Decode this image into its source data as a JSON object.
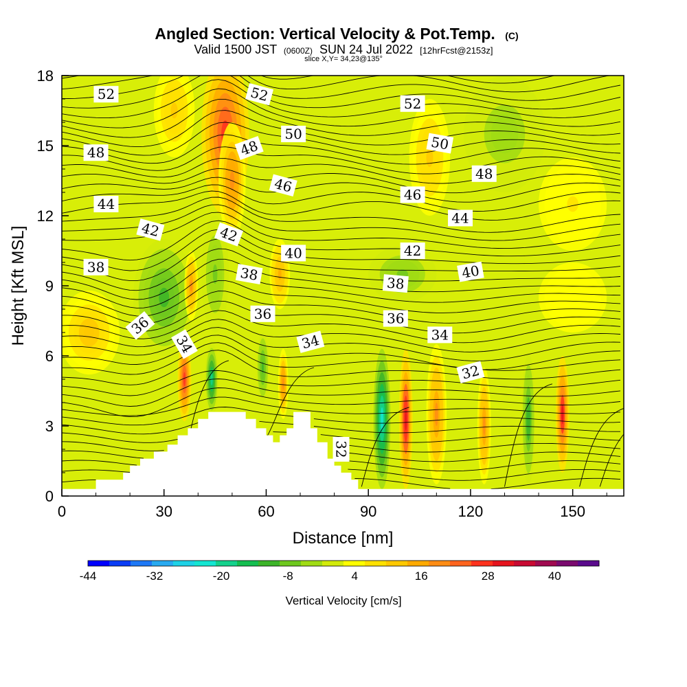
{
  "title": {
    "main": "Angled Section: Vertical Velocity & Pot.Temp.",
    "main_unit": "(C)",
    "valid_prefix": "Valid 1500 JST",
    "valid_utc": "(0600Z)",
    "valid_date": "SUN 24 Jul 2022",
    "forecast": "[12hrFcst@2153z]",
    "slice": "slice X,Y= 34,23@135°"
  },
  "chart_data": {
    "type": "heatmap",
    "xlabel": "Distance [nm]",
    "ylabel": "Height [Kft MSL]",
    "xlim": [
      0,
      165
    ],
    "ylim": [
      0,
      18
    ],
    "x_ticks": [
      "0",
      "30",
      "60",
      "90",
      "120",
      "150"
    ],
    "x_tick_values": [
      0,
      30,
      60,
      90,
      120,
      150
    ],
    "y_ticks": [
      "0",
      "3",
      "6",
      "9",
      "12",
      "15",
      "18"
    ],
    "y_tick_values": [
      0,
      3,
      6,
      9,
      12,
      15,
      18
    ],
    "fill_variable": "Vertical Velocity [cm/s]",
    "colorbar": {
      "label": "Vertical Velocity [cm/s]",
      "tick_labels": [
        "-44",
        "-32",
        "-20",
        "-8",
        "4",
        "16",
        "28",
        "40"
      ],
      "tick_values": [
        -44,
        -32,
        -20,
        -8,
        4,
        16,
        28,
        40
      ],
      "range": [
        -44,
        48
      ],
      "colors": [
        "#0000ff",
        "#0a3cf5",
        "#1e78f5",
        "#28aaf0",
        "#1ed2e6",
        "#14e6d2",
        "#14d28c",
        "#14be50",
        "#3cb428",
        "#6ec81e",
        "#a0dc14",
        "#d2eb0a",
        "#ffff00",
        "#ffe100",
        "#ffc800",
        "#ffaa00",
        "#ff8c14",
        "#ff641e",
        "#ff321e",
        "#e6141e",
        "#c80a32",
        "#a00a50",
        "#7a0a6e",
        "#5a0a8c"
      ]
    },
    "cells": {
      "background": "#d8ee08",
      "features": [
        {
          "x": 48,
          "y": 15.5,
          "rx": 7,
          "ry": 3.5,
          "value": 28
        },
        {
          "x": 50,
          "y": 13.5,
          "rx": 4,
          "ry": 2.5,
          "value": 20
        },
        {
          "x": 33,
          "y": 16.5,
          "rx": 6,
          "ry": 2.0,
          "value": 10
        },
        {
          "x": 8,
          "y": 7.0,
          "rx": 9,
          "ry": 1.8,
          "value": 12
        },
        {
          "x": 30,
          "y": 8.5,
          "rx": 9,
          "ry": 2.5,
          "value": -10
        },
        {
          "x": 45,
          "y": 9.5,
          "rx": 4,
          "ry": 2.5,
          "value": -6
        },
        {
          "x": 36,
          "y": 5.0,
          "rx": 2,
          "ry": 1.8,
          "value": 26
        },
        {
          "x": 44,
          "y": 5.0,
          "rx": 2,
          "ry": 1.6,
          "value": -20
        },
        {
          "x": 38,
          "y": 9.0,
          "rx": 2,
          "ry": 1.5,
          "value": 18
        },
        {
          "x": 59,
          "y": 5.5,
          "rx": 1.8,
          "ry": 1.5,
          "value": -10
        },
        {
          "x": 65,
          "y": 4.8,
          "rx": 1.5,
          "ry": 1.5,
          "value": 20
        },
        {
          "x": 64,
          "y": 9.5,
          "rx": 3,
          "ry": 1.5,
          "value": 14
        },
        {
          "x": 94,
          "y": 3.3,
          "rx": 2.5,
          "ry": 3.0,
          "value": -22
        },
        {
          "x": 101,
          "y": 3.3,
          "rx": 2.0,
          "ry": 3.0,
          "value": 32
        },
        {
          "x": 110,
          "y": 3.5,
          "rx": 3.0,
          "ry": 3.0,
          "value": 18
        },
        {
          "x": 124,
          "y": 3.0,
          "rx": 2.0,
          "ry": 2.5,
          "value": 18
        },
        {
          "x": 137,
          "y": 3.3,
          "rx": 2.0,
          "ry": 2.8,
          "value": -12
        },
        {
          "x": 147,
          "y": 3.5,
          "rx": 2.0,
          "ry": 2.5,
          "value": 30
        },
        {
          "x": 100,
          "y": 9.5,
          "rx": 10,
          "ry": 1.2,
          "value": -6
        },
        {
          "x": 108,
          "y": 14.5,
          "rx": 6,
          "ry": 2.5,
          "value": 10
        },
        {
          "x": 130,
          "y": 15.5,
          "rx": 12,
          "ry": 2.5,
          "value": -4
        },
        {
          "x": 150,
          "y": 12.5,
          "rx": 10,
          "ry": 2.0,
          "value": 6
        },
        {
          "x": 150,
          "y": 8.5,
          "rx": 10,
          "ry": 1.5,
          "value": 4
        }
      ]
    },
    "contours": {
      "variable": "Potential Temperature (C)",
      "interval": 0.5,
      "labels": [
        {
          "text": "52",
          "x": 13,
          "y": 17.2,
          "angle": 0
        },
        {
          "text": "52",
          "x": 58,
          "y": 17.2,
          "angle": 15
        },
        {
          "text": "52",
          "x": 103,
          "y": 16.8,
          "angle": 0
        },
        {
          "text": "50",
          "x": 68,
          "y": 15.5,
          "angle": 0
        },
        {
          "text": "50",
          "x": 111,
          "y": 15.1,
          "angle": 10
        },
        {
          "text": "48",
          "x": 10,
          "y": 14.7,
          "angle": 0
        },
        {
          "text": "48",
          "x": 55,
          "y": 14.9,
          "angle": -20
        },
        {
          "text": "48",
          "x": 124,
          "y": 13.8,
          "angle": 0
        },
        {
          "text": "46",
          "x": 65,
          "y": 13.3,
          "angle": 15
        },
        {
          "text": "46",
          "x": 103,
          "y": 12.9,
          "angle": 0
        },
        {
          "text": "44",
          "x": 13,
          "y": 12.5,
          "angle": 0
        },
        {
          "text": "44",
          "x": 117,
          "y": 11.9,
          "angle": 0
        },
        {
          "text": "42",
          "x": 26,
          "y": 11.4,
          "angle": 15
        },
        {
          "text": "42",
          "x": 49,
          "y": 11.2,
          "angle": 20
        },
        {
          "text": "42",
          "x": 103,
          "y": 10.5,
          "angle": 0
        },
        {
          "text": "40",
          "x": 68,
          "y": 10.4,
          "angle": 0
        },
        {
          "text": "40",
          "x": 120,
          "y": 9.6,
          "angle": -10
        },
        {
          "text": "38",
          "x": 10,
          "y": 9.8,
          "angle": 0
        },
        {
          "text": "38",
          "x": 55,
          "y": 9.5,
          "angle": 10
        },
        {
          "text": "38",
          "x": 98,
          "y": 9.1,
          "angle": 5
        },
        {
          "text": "36",
          "x": 23,
          "y": 7.3,
          "angle": -40
        },
        {
          "text": "36",
          "x": 59,
          "y": 7.8,
          "angle": 0
        },
        {
          "text": "36",
          "x": 98,
          "y": 7.6,
          "angle": 0
        },
        {
          "text": "34",
          "x": 36,
          "y": 6.5,
          "angle": 60
        },
        {
          "text": "34",
          "x": 73,
          "y": 6.6,
          "angle": -15
        },
        {
          "text": "34",
          "x": 111,
          "y": 6.9,
          "angle": 0
        },
        {
          "text": "32",
          "x": 120,
          "y": 5.3,
          "angle": -15
        },
        {
          "text": "32",
          "x": 82,
          "y": 2.0,
          "angle": 90
        }
      ]
    },
    "terrain_kft": [
      [
        0,
        0.3
      ],
      [
        5,
        0.3
      ],
      [
        10,
        0.7
      ],
      [
        15,
        0.7
      ],
      [
        18,
        1.0
      ],
      [
        20,
        1.3
      ],
      [
        23,
        1.6
      ],
      [
        27,
        1.9
      ],
      [
        31,
        2.2
      ],
      [
        34,
        2.6
      ],
      [
        37,
        2.9
      ],
      [
        40,
        3.3
      ],
      [
        43,
        3.6
      ],
      [
        48,
        3.6
      ],
      [
        52,
        3.6
      ],
      [
        54,
        3.3
      ],
      [
        57,
        2.9
      ],
      [
        60,
        2.6
      ],
      [
        62,
        2.3
      ],
      [
        64,
        2.6
      ],
      [
        66,
        2.9
      ],
      [
        68,
        3.6
      ],
      [
        72,
        3.6
      ],
      [
        73,
        2.9
      ],
      [
        75,
        2.3
      ],
      [
        78,
        1.6
      ],
      [
        80,
        1.3
      ],
      [
        82,
        1.0
      ],
      [
        85,
        0.7
      ],
      [
        87,
        0.3
      ],
      [
        90,
        0.3
      ],
      [
        165,
        0.3
      ]
    ]
  }
}
